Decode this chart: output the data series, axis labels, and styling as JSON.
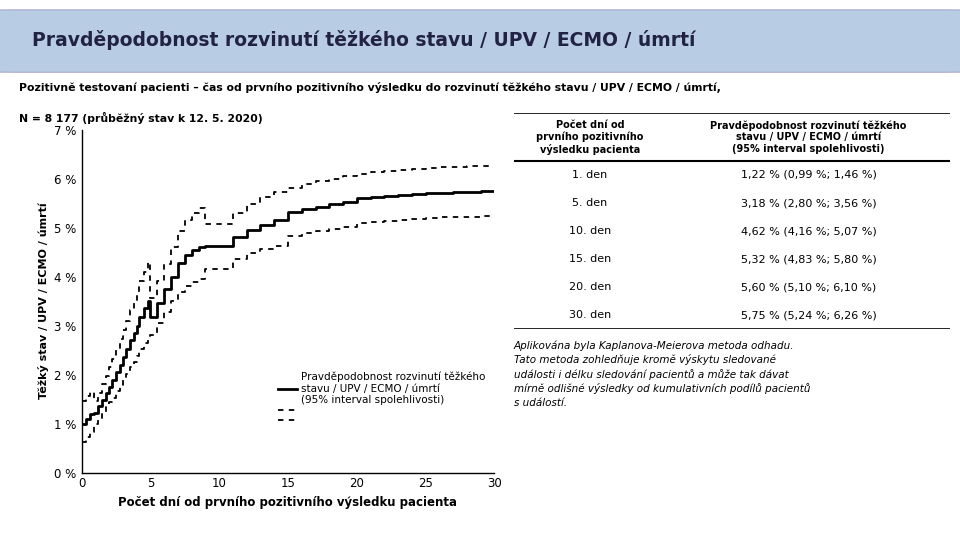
{
  "title": "Pravděpodobnost rozvinutí těžkého stavu / UPV / ECMO / úmrtí",
  "subtitle_line1": "Pozitivně testovaní pacienti – čas od prvního pozitivního výsledku do rozvinutí těžkého stavu / UPV / ECMO / úmrtí,",
  "subtitle_line2": "N = 8 177 (průběžný stav k 12. 5. 2020)",
  "xlabel": "Počet dní od prvního pozitivního výsledku pacienta",
  "ylabel": "Těžký stav / UPV / ECMO / úmrtí",
  "xlim": [
    0,
    30
  ],
  "ylim": [
    0,
    0.07
  ],
  "yticks": [
    0.0,
    0.01,
    0.02,
    0.03,
    0.04,
    0.05,
    0.06,
    0.07
  ],
  "ytick_labels": [
    "0 %",
    "1 %",
    "2 %",
    "3 %",
    "4 %",
    "5 %",
    "6 %",
    "7 %"
  ],
  "xticks": [
    0,
    5,
    10,
    15,
    20,
    25,
    30
  ],
  "legend_label": "Pravděpodobnost rozvinutí těžkého\nstavu / UPV / ECMO / úmrtí\n(95% interval spolehlivosti)",
  "table_header_col1": "Počet dní od\nprvního pozitivního\nvýsledku pacienta",
  "table_header_col2": "Pravděpodobnost rozvinutí těžkého\nstavu / UPV / ECMO / úmrtí\n(95% interval spolehlivosti)",
  "table_rows": [
    [
      "1. den",
      "1,22 % (0,99 %; 1,46 %)"
    ],
    [
      "5. den",
      "3,18 % (2,80 %; 3,56 %)"
    ],
    [
      "10. den",
      "4,62 % (4,16 %; 5,07 %)"
    ],
    [
      "15. den",
      "5,32 % (4,83 %; 5,80 %)"
    ],
    [
      "20. den",
      "5,60 % (5,10 %; 6,10 %)"
    ],
    [
      "30. den",
      "5,75 % (5,24 %; 6,26 %)"
    ]
  ],
  "footnote": "Aplikována byla Kaplanova-Meierova metoda odhadu.\nTato metoda zohledňuje kromě výskytu sledované\nudálosti i délku sledování pacientů a může tak dávat\nmírně odlišné výsledky od kumulativních podílů pacientů\ns událostí.",
  "background_color": "#ffffff",
  "title_bg_color": "#b8cce4"
}
